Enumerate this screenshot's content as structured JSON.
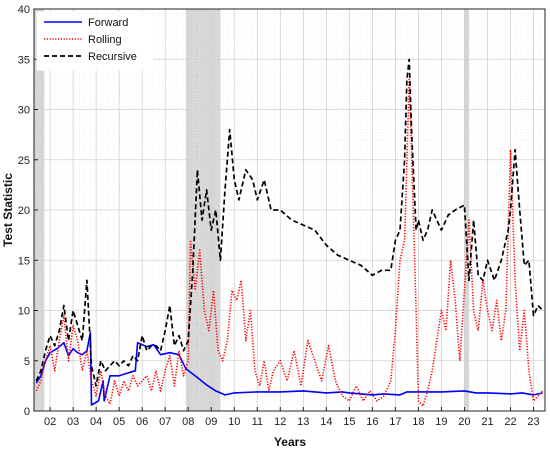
{
  "chart_data": {
    "type": "line",
    "title": "",
    "xlabel": "Years",
    "ylabel": "Test Statistic",
    "xlim": [
      2001.3,
      2023.5
    ],
    "ylim": [
      0,
      40
    ],
    "yticks": [
      0,
      5,
      10,
      15,
      20,
      25,
      30,
      35,
      40
    ],
    "xticks": [
      2002,
      2003,
      2004,
      2005,
      2006,
      2007,
      2008,
      2009,
      2010,
      2011,
      2012,
      2013,
      2014,
      2015,
      2016,
      2017,
      2018,
      2019,
      2020,
      2021,
      2022,
      2023
    ],
    "xtick_labels": [
      "02",
      "03",
      "04",
      "05",
      "06",
      "07",
      "08",
      "09",
      "10",
      "11",
      "12",
      "13",
      "14",
      "15",
      "16",
      "17",
      "18",
      "19",
      "20",
      "21",
      "22",
      "23"
    ],
    "grid": true,
    "legend_position": "top-left",
    "shaded_periods": [
      [
        2001.3,
        2001.75
      ],
      [
        2007.9,
        2009.4
      ],
      [
        2020.0,
        2020.2
      ]
    ],
    "series": [
      {
        "name": "Forward",
        "color": "#0000ff",
        "style": "solid",
        "x": [
          2001.4,
          2001.6,
          2001.8,
          2002.0,
          2002.3,
          2002.6,
          2002.8,
          2003.0,
          2003.2,
          2003.4,
          2003.6,
          2003.75,
          2003.8,
          2004.1,
          2004.3,
          2004.35,
          2004.6,
          2005.0,
          2005.4,
          2005.7,
          2005.8,
          2006.2,
          2006.5,
          2006.8,
          2007.2,
          2007.6,
          2007.9,
          2008.3,
          2008.8,
          2009.2,
          2009.6,
          2010.0,
          2011.0,
          2012.0,
          2013.0,
          2014.0,
          2014.7,
          2015.0,
          2016.0,
          2016.5,
          2017.2,
          2017.5,
          2018.0,
          2019.0,
          2020.0,
          2020.5,
          2021.0,
          2022.0,
          2022.5,
          2023.0,
          2023.4
        ],
        "y": [
          2.8,
          3.5,
          5.0,
          5.8,
          6.2,
          6.8,
          5.5,
          6.2,
          5.8,
          5.6,
          6.0,
          7.8,
          0.6,
          1.0,
          3.0,
          1.0,
          3.5,
          3.5,
          3.8,
          4.0,
          6.8,
          6.4,
          6.6,
          5.6,
          5.8,
          5.6,
          4.2,
          3.5,
          2.6,
          2.0,
          1.6,
          1.8,
          1.9,
          1.9,
          2.0,
          1.8,
          1.9,
          1.8,
          1.6,
          1.7,
          1.6,
          1.9,
          1.9,
          1.9,
          2.0,
          1.8,
          1.8,
          1.7,
          1.8,
          1.6,
          1.8
        ]
      },
      {
        "name": "Rolling",
        "color": "#ff0000",
        "style": "dotted",
        "x": [
          2001.4,
          2001.6,
          2001.8,
          2002.0,
          2002.2,
          2002.4,
          2002.6,
          2002.8,
          2003.0,
          2003.2,
          2003.4,
          2003.6,
          2003.8,
          2004.0,
          2004.2,
          2004.4,
          2004.6,
          2004.8,
          2005.0,
          2005.2,
          2005.4,
          2005.6,
          2005.8,
          2006.0,
          2006.2,
          2006.4,
          2006.6,
          2006.8,
          2007.0,
          2007.2,
          2007.4,
          2007.6,
          2007.8,
          2008.0,
          2008.1,
          2008.3,
          2008.5,
          2008.7,
          2008.9,
          2009.1,
          2009.3,
          2009.5,
          2009.7,
          2009.9,
          2010.1,
          2010.3,
          2010.5,
          2010.7,
          2010.9,
          2011.1,
          2011.3,
          2011.5,
          2011.7,
          2012.0,
          2012.3,
          2012.6,
          2012.9,
          2013.2,
          2013.5,
          2013.8,
          2014.1,
          2014.4,
          2014.7,
          2015.0,
          2015.3,
          2015.6,
          2015.9,
          2016.2,
          2016.5,
          2016.8,
          2017.0,
          2017.2,
          2017.4,
          2017.5,
          2017.6,
          2017.7,
          2017.8,
          2017.9,
          2018.0,
          2018.2,
          2018.4,
          2018.6,
          2018.8,
          2019.0,
          2019.2,
          2019.4,
          2019.6,
          2019.8,
          2020.0,
          2020.2,
          2020.4,
          2020.6,
          2020.8,
          2021.0,
          2021.2,
          2021.4,
          2021.6,
          2021.8,
          2022.0,
          2022.2,
          2022.4,
          2022.6,
          2022.8,
          2023.0,
          2023.2,
          2023.4
        ],
        "y": [
          2.0,
          3.0,
          5.0,
          6.5,
          4.0,
          7.0,
          9.5,
          5.0,
          8.5,
          7.0,
          4.0,
          6.0,
          3.0,
          1.5,
          4.0,
          1.5,
          0.7,
          3.0,
          1.5,
          3.0,
          2.0,
          3.5,
          2.5,
          3.0,
          3.5,
          2.0,
          4.0,
          2.0,
          4.0,
          5.5,
          2.5,
          6.0,
          3.5,
          5.0,
          17.0,
          12.0,
          16.0,
          10.0,
          8.0,
          12.0,
          6.0,
          5.0,
          7.0,
          12.0,
          11.0,
          13.0,
          7.0,
          10.0,
          4.0,
          2.5,
          5.0,
          2.0,
          4.0,
          5.0,
          3.0,
          6.0,
          2.5,
          7.0,
          5.0,
          3.0,
          6.5,
          3.0,
          1.5,
          1.0,
          2.5,
          1.0,
          2.0,
          1.0,
          1.5,
          3.0,
          8.0,
          15.0,
          17.0,
          25.0,
          33.0,
          26.0,
          18.0,
          10.0,
          1.0,
          0.5,
          2.0,
          4.0,
          7.0,
          10.0,
          8.0,
          15.0,
          11.0,
          5.0,
          12.0,
          19.0,
          10.0,
          8.0,
          13.0,
          10.0,
          8.0,
          11.0,
          7.0,
          10.0,
          26.0,
          13.0,
          6.0,
          10.0,
          4.0,
          1.0,
          1.5,
          2.0
        ]
      },
      {
        "name": "Recursive",
        "color": "#000000",
        "style": "dashed",
        "x": [
          2001.4,
          2001.6,
          2001.8,
          2002.0,
          2002.2,
          2002.4,
          2002.6,
          2002.8,
          2003.0,
          2003.2,
          2003.4,
          2003.6,
          2003.8,
          2004.0,
          2004.2,
          2004.4,
          2004.6,
          2004.8,
          2005.0,
          2005.2,
          2005.4,
          2005.6,
          2005.8,
          2006.0,
          2006.2,
          2006.4,
          2006.6,
          2006.8,
          2007.0,
          2007.2,
          2007.4,
          2007.6,
          2007.8,
          2008.0,
          2008.2,
          2008.4,
          2008.6,
          2008.8,
          2009.0,
          2009.2,
          2009.4,
          2009.6,
          2009.8,
          2010.0,
          2010.2,
          2010.5,
          2010.8,
          2011.0,
          2011.3,
          2011.6,
          2012.0,
          2012.5,
          2013.0,
          2013.5,
          2014.0,
          2014.5,
          2015.0,
          2015.5,
          2016.0,
          2016.4,
          2016.8,
          2017.0,
          2017.2,
          2017.4,
          2017.5,
          2017.6,
          2017.7,
          2017.8,
          2017.9,
          2018.0,
          2018.2,
          2018.4,
          2018.6,
          2018.8,
          2019.0,
          2019.3,
          2019.6,
          2020.0,
          2020.2,
          2020.4,
          2020.6,
          2020.8,
          2021.0,
          2021.3,
          2021.6,
          2021.9,
          2022.0,
          2022.2,
          2022.4,
          2022.6,
          2022.8,
          2023.0,
          2023.2,
          2023.4
        ],
        "y": [
          3.0,
          4.0,
          6.0,
          7.5,
          6.5,
          8.0,
          10.5,
          7.0,
          10.0,
          8.5,
          7.0,
          13.0,
          4.5,
          2.5,
          5.0,
          4.0,
          4.5,
          5.0,
          4.5,
          5.0,
          4.5,
          5.5,
          5.0,
          7.5,
          6.0,
          6.5,
          6.5,
          6.0,
          8.0,
          10.5,
          6.5,
          7.5,
          6.0,
          7.0,
          14.0,
          24.0,
          19.0,
          22.0,
          18.0,
          20.0,
          15.0,
          22.0,
          28.0,
          23.0,
          21.0,
          24.0,
          23.0,
          21.0,
          23.0,
          20.0,
          20.0,
          19.0,
          18.5,
          18.0,
          16.5,
          15.5,
          15.0,
          14.5,
          13.5,
          14.0,
          14.0,
          17.0,
          18.0,
          25.0,
          33.0,
          35.0,
          28.0,
          23.0,
          18.0,
          19.0,
          17.0,
          18.0,
          20.0,
          19.0,
          18.0,
          19.5,
          20.0,
          20.5,
          13.0,
          19.0,
          13.5,
          13.0,
          15.0,
          13.0,
          15.0,
          18.0,
          20.0,
          26.0,
          20.0,
          14.5,
          15.0,
          9.5,
          10.5,
          10.0
        ]
      }
    ]
  }
}
